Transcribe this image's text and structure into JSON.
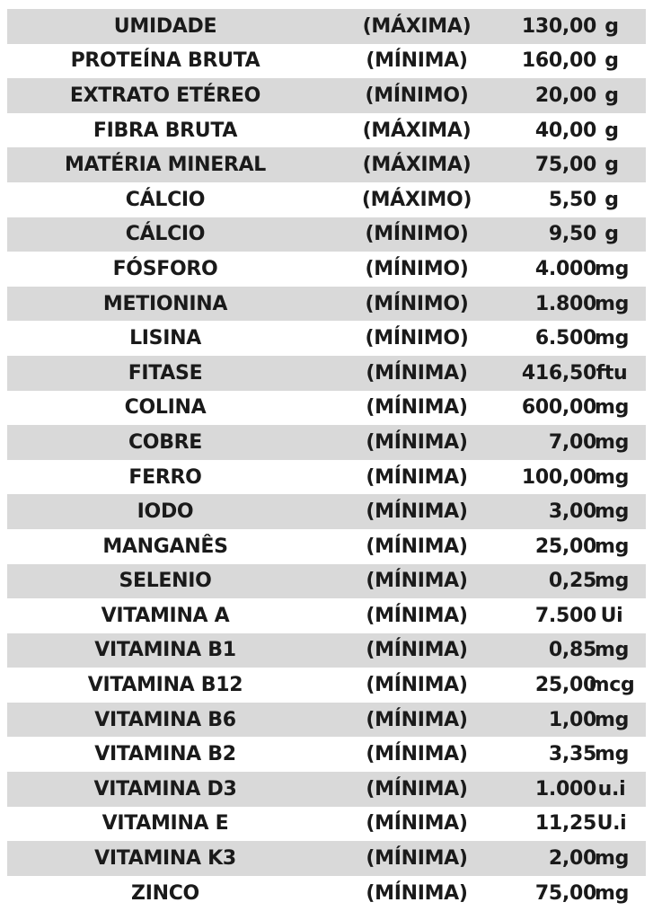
{
  "table": {
    "rows": [
      {
        "nutrient": "UMIDADE",
        "qualifier": "(MÁXIMA)",
        "value": "130,00",
        "unit": "g"
      },
      {
        "nutrient": "PROTEÍNA BRUTA",
        "qualifier": "(MÍNIMA)",
        "value": "160,00",
        "unit": "g"
      },
      {
        "nutrient": "EXTRATO ETÉREO",
        "qualifier": "(MÍNIMO)",
        "value": "20,00",
        "unit": "g"
      },
      {
        "nutrient": "FIBRA BRUTA",
        "qualifier": "(MÁXIMA)",
        "value": "40,00",
        "unit": "g"
      },
      {
        "nutrient": "MATÉRIA MINERAL",
        "qualifier": "(MÁXIMA)",
        "value": "75,00",
        "unit": "g"
      },
      {
        "nutrient": "CÁLCIO",
        "qualifier": "(MÁXIMO)",
        "value": "5,50",
        "unit": "g"
      },
      {
        "nutrient": "CÁLCIO",
        "qualifier": "(MÍNIMO)",
        "value": "9,50",
        "unit": "g"
      },
      {
        "nutrient": "FÓSFORO",
        "qualifier": "(MÍNIMO)",
        "value": "4.000",
        "unit": "mg"
      },
      {
        "nutrient": "METIONINA",
        "qualifier": "(MÍNIMO)",
        "value": "1.800",
        "unit": "mg"
      },
      {
        "nutrient": "LISINA",
        "qualifier": "(MÍNIMO)",
        "value": "6.500",
        "unit": "mg"
      },
      {
        "nutrient": "FITASE",
        "qualifier": "(MÍNIMA)",
        "value": "416,50",
        "unit": "ftu"
      },
      {
        "nutrient": "COLINA",
        "qualifier": "(MÍNIMA)",
        "value": "600,00",
        "unit": "mg"
      },
      {
        "nutrient": "COBRE",
        "qualifier": "(MÍNIMA)",
        "value": "7,00",
        "unit": "mg"
      },
      {
        "nutrient": "FERRO",
        "qualifier": "(MÍNIMA)",
        "value": "100,00",
        "unit": "mg"
      },
      {
        "nutrient": "IODO",
        "qualifier": "(MÍNIMA)",
        "value": "3,00",
        "unit": "mg"
      },
      {
        "nutrient": "MANGANÊS",
        "qualifier": "(MÍNIMA)",
        "value": "25,00",
        "unit": "mg"
      },
      {
        "nutrient": "SELENIO",
        "qualifier": "(MÍNIMA)",
        "value": "0,25",
        "unit": "mg"
      },
      {
        "nutrient": "VITAMINA A",
        "qualifier": "(MÍNIMA)",
        "value": "7.500",
        "unit": "Ui"
      },
      {
        "nutrient": "VITAMINA B1",
        "qualifier": "(MÍNIMA)",
        "value": "0,85",
        "unit": "mg"
      },
      {
        "nutrient": "VITAMINA B12",
        "qualifier": "(MÍNIMA)",
        "value": "25,00",
        "unit": "mcg"
      },
      {
        "nutrient": "VITAMINA B6",
        "qualifier": "(MÍNIMA)",
        "value": "1,00",
        "unit": "mg"
      },
      {
        "nutrient": "VITAMINA B2",
        "qualifier": "(MÍNIMA)",
        "value": "3,35",
        "unit": "mg"
      },
      {
        "nutrient": "VITAMINA D3",
        "qualifier": "(MÍNIMA)",
        "value": "1.000",
        "unit": "u.i"
      },
      {
        "nutrient": "VITAMINA E",
        "qualifier": "(MÍNIMA)",
        "value": "11,25",
        "unit": "U.i"
      },
      {
        "nutrient": "VITAMINA K3",
        "qualifier": "(MÍNIMA)",
        "value": "2,00",
        "unit": "mg"
      },
      {
        "nutrient": "ZINCO",
        "qualifier": "(MÍNIMA)",
        "value": "75,00",
        "unit": "mg"
      }
    ]
  },
  "colors": {
    "shaded_row": "#d9d9d9",
    "plain_row": "#ffffff",
    "text": "#1a1a1a"
  }
}
